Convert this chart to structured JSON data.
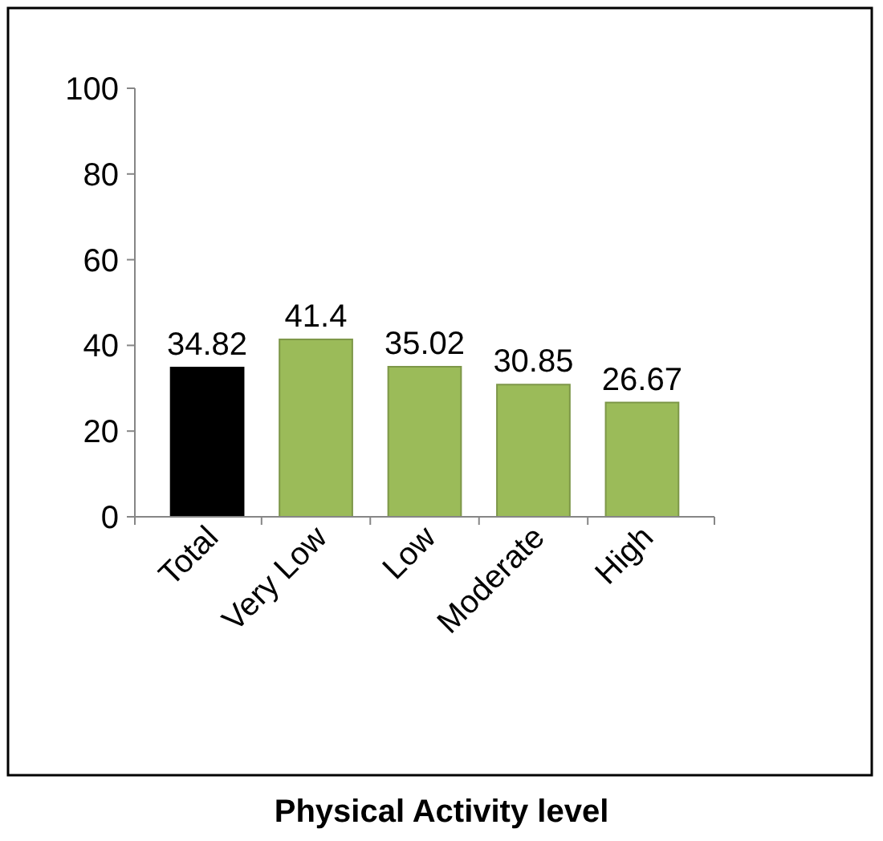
{
  "chart_data": {
    "type": "bar",
    "xlabel": "Physical Activity level",
    "categories": [
      "Total",
      "Very Low",
      "Low",
      "Moderate",
      "High"
    ],
    "values": [
      34.82,
      41.4,
      35.02,
      30.85,
      26.67
    ],
    "colors": [
      "#000000",
      "#9bbb59",
      "#9bbb59",
      "#9bbb59",
      "#9bbb59"
    ],
    "ylim": [
      0,
      100
    ],
    "yticks": [
      0,
      20,
      40,
      60,
      80,
      100
    ],
    "data_labels": true,
    "grid": false
  }
}
